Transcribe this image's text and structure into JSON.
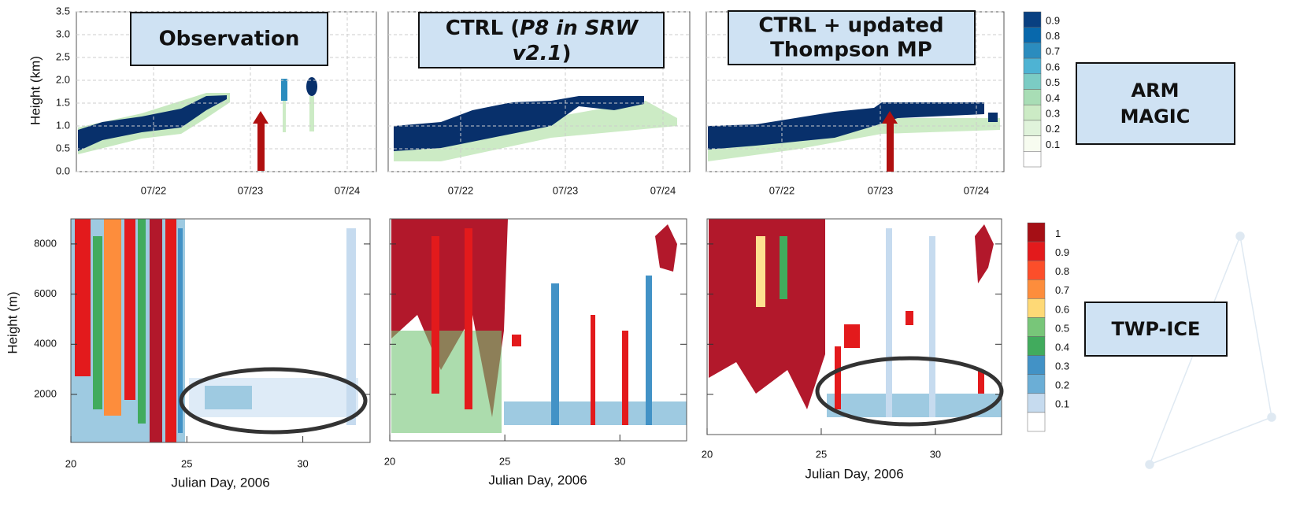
{
  "panel_titles": {
    "observation": "Observation",
    "ctrl": {
      "line1": [
        "CTRL (",
        "P8 in SRW"
      ],
      "line2": [
        "v2.1",
        ")"
      ]
    },
    "updated": {
      "line1": "CTRL + updated",
      "line2": "Thompson MP"
    }
  },
  "top_row": {
    "y_axis_label": "Height (km)",
    "yticks": [
      "0.0",
      "0.5",
      "1.0",
      "1.5",
      "2.0",
      "2.5",
      "3.0",
      "3.5"
    ],
    "xticks": [
      "07/22",
      "07/23",
      "07/24"
    ]
  },
  "bottom_row": {
    "y_axis_label": "Height (m)",
    "yticks": [
      "2000",
      "4000",
      "6000",
      "8000"
    ],
    "xticks": [
      "20",
      "25",
      "30"
    ],
    "x_axis_label": "Julian Day, 2006"
  },
  "colorbars": {
    "top": [
      "0.9",
      "0.8",
      "0.7",
      "0.6",
      "0.5",
      "0.4",
      "0.3",
      "0.2",
      "0.1"
    ],
    "bottom": [
      "1",
      "0.9",
      "0.8",
      "0.7",
      "0.6",
      "0.5",
      "0.4",
      "0.3",
      "0.2",
      "0.1"
    ]
  },
  "side_labels": {
    "top": [
      "ARM",
      "MAGIC"
    ],
    "bottom": "TWP-ICE"
  }
}
